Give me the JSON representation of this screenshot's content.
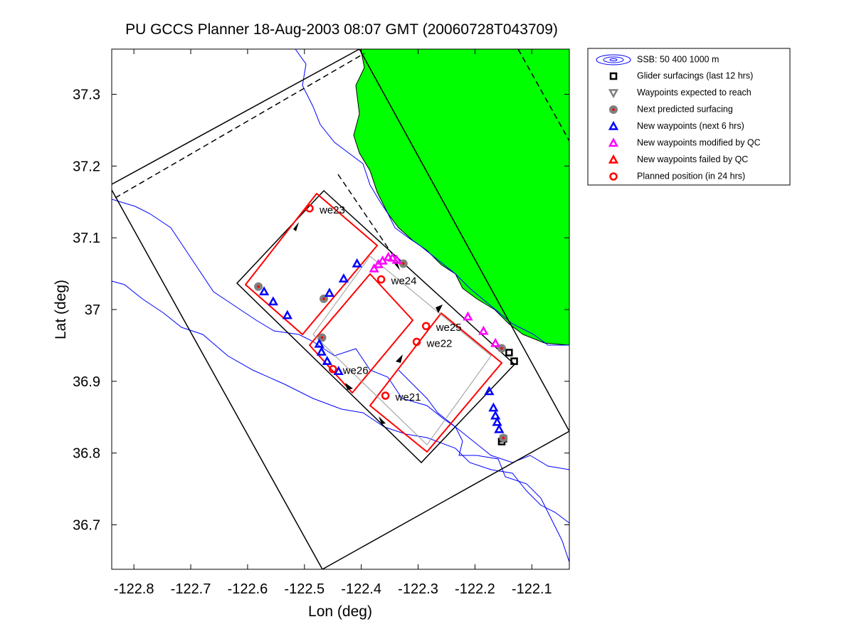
{
  "chart_data": {
    "type": "scatter",
    "title": "PU GCCS Planner 18-Aug-2003 08:07 GMT (20060728T043709)",
    "x_label": "Lon (deg)",
    "y_label": "Lat (deg)",
    "xlim": [
      -122.839,
      -122.034
    ],
    "ylim": [
      36.638,
      37.363
    ],
    "xticks": [
      -122.8,
      -122.7,
      -122.6,
      -122.5,
      -122.4,
      -122.3,
      -122.2,
      -122.1
    ],
    "yticks": [
      36.7,
      36.8,
      36.9,
      37,
      37.1,
      37.2,
      37.3
    ],
    "contour_legend": "SSB: 50   400  1000 m",
    "series": [
      {
        "name": "Glider surfacings (last 12 hrs)",
        "color": "#000000",
        "marker": "square",
        "x": [
          -122.14,
          -122.131,
          -122.153,
          -122.15
        ],
        "y": [
          36.94,
          36.928,
          36.816,
          36.82
        ]
      },
      {
        "name": "Waypoints expected to reach",
        "color": "#808080",
        "marker": "triangle-down",
        "x": [],
        "y": []
      },
      {
        "name": "Next predicted surfacing",
        "color": "#808080",
        "marker": "dot",
        "x": [
          -122.581,
          -122.466,
          -122.469,
          -122.326,
          -122.153,
          -122.15
        ],
        "y": [
          37.032,
          37.015,
          36.961,
          37.064,
          36.946,
          36.821
        ]
      },
      {
        "name": "New waypoints (next 6 hrs)",
        "color": "#0000ff",
        "marker": "triangle",
        "x": [
          -122.571,
          -122.555,
          -122.53,
          -122.456,
          -122.431,
          -122.4075,
          -122.474,
          -122.47,
          -122.46,
          -122.44,
          -122.175,
          -122.1675,
          -122.164,
          -122.161,
          -122.1575
        ],
        "y": [
          37.025,
          37.011,
          36.992,
          37.023,
          37.043,
          37.064,
          36.952,
          36.941,
          36.928,
          36.914,
          36.886,
          36.863,
          36.852,
          36.843,
          36.833
        ]
      },
      {
        "name": "New waypoints modified by QC",
        "color": "#ff00ff",
        "marker": "triangle",
        "x": [
          -122.3775,
          -122.37,
          -122.3625,
          -122.3525,
          -122.345,
          -122.3375,
          -122.2125,
          -122.185,
          -122.164
        ],
        "y": [
          37.057,
          37.063,
          37.068,
          37.073,
          37.072,
          37.069,
          36.99,
          36.97,
          36.953
        ]
      },
      {
        "name": "New waypoints failed by QC",
        "color": "#ff0000",
        "marker": "triangle",
        "x": [],
        "y": []
      },
      {
        "name": "Planned position (in 24 hrs)",
        "color": "#ff0000",
        "marker": "circle",
        "x": [
          -122.491,
          -122.365,
          -122.286,
          -122.3025,
          -122.45,
          -122.3575
        ],
        "y": [
          37.141,
          37.042,
          36.977,
          36.955,
          36.917,
          36.88
        ],
        "labels": [
          "we23",
          "we24",
          "we25",
          "we22",
          "we26",
          "we21"
        ]
      }
    ]
  }
}
